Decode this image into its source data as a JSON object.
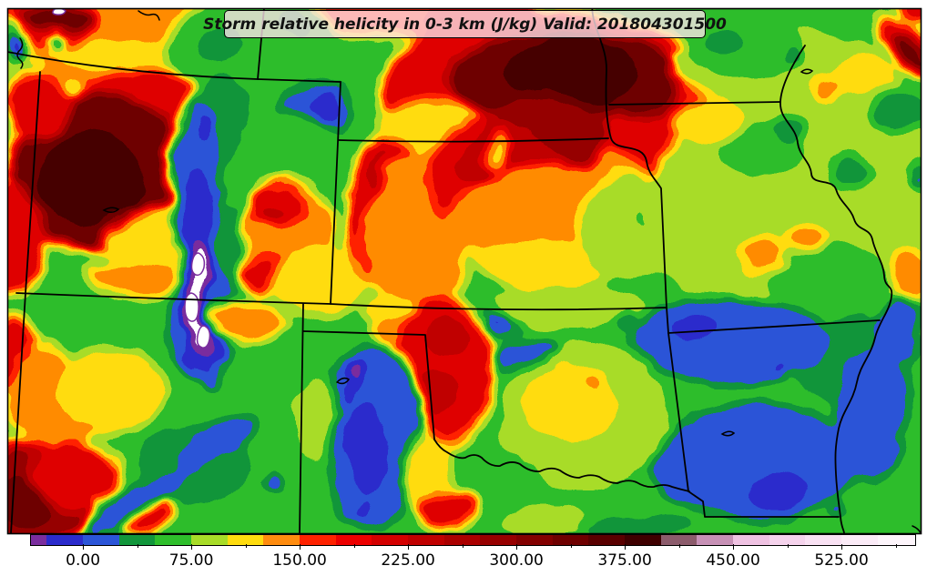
{
  "title": {
    "text": "Storm relative helicity in 0-3 km (J/kg) Valid: 201804301500"
  },
  "colorbar": {
    "domain": [
      -36,
      576
    ],
    "major_ticks": [
      {
        "value": 0,
        "label": "0.00"
      },
      {
        "value": 75,
        "label": "75.00"
      },
      {
        "value": 150,
        "label": "150.00"
      },
      {
        "value": 225,
        "label": "225.00"
      },
      {
        "value": 300,
        "label": "300.00"
      },
      {
        "value": 375,
        "label": "375.00"
      },
      {
        "value": 450,
        "label": "450.00"
      },
      {
        "value": 525,
        "label": "525.00"
      }
    ],
    "minor_ticks": [
      37.5,
      112.5,
      187.5,
      262.5,
      337.5,
      412.5,
      487.5,
      562.5
    ],
    "segments": [
      {
        "from": -36,
        "to": -25,
        "color": "#7A2D9E"
      },
      {
        "from": -25,
        "to": 0,
        "color": "#2B2BCC"
      },
      {
        "from": 0,
        "to": 25,
        "color": "#2B55D8"
      },
      {
        "from": 25,
        "to": 50,
        "color": "#11963B"
      },
      {
        "from": 50,
        "to": 75,
        "color": "#2EBE2B"
      },
      {
        "from": 75,
        "to": 100,
        "color": "#A8DC28"
      },
      {
        "from": 100,
        "to": 125,
        "color": "#FFDC0F"
      },
      {
        "from": 125,
        "to": 150,
        "color": "#FF8C0F"
      },
      {
        "from": 150,
        "to": 175,
        "color": "#FF2200"
      },
      {
        "from": 175,
        "to": 200,
        "color": "#ED0000"
      },
      {
        "from": 200,
        "to": 225,
        "color": "#D40000"
      },
      {
        "from": 225,
        "to": 250,
        "color": "#C00000"
      },
      {
        "from": 250,
        "to": 275,
        "color": "#AB0000"
      },
      {
        "from": 275,
        "to": 300,
        "color": "#970000"
      },
      {
        "from": 300,
        "to": 325,
        "color": "#830000"
      },
      {
        "from": 325,
        "to": 350,
        "color": "#6F0000"
      },
      {
        "from": 350,
        "to": 375,
        "color": "#5A0000"
      },
      {
        "from": 375,
        "to": 400,
        "color": "#3F0000"
      },
      {
        "from": 400,
        "to": 425,
        "color": "#8C5C6C"
      },
      {
        "from": 425,
        "to": 450,
        "color": "#C791B6"
      },
      {
        "from": 450,
        "to": 475,
        "color": "#EFC2E2"
      },
      {
        "from": 475,
        "to": 500,
        "color": "#F5D3EC"
      },
      {
        "from": 500,
        "to": 525,
        "color": "#F9E1F3"
      },
      {
        "from": 525,
        "to": 550,
        "color": "#FBEBF7"
      },
      {
        "from": 550,
        "to": 576,
        "color": "#FDF5FB"
      }
    ]
  },
  "chart_data": {
    "type": "heatmap",
    "title": "Storm relative helicity in 0-3 km (J/kg) Valid: 201804301500",
    "variable": "Storm relative helicity in 0-3 km",
    "units": "J/kg",
    "valid_time": "201804301500",
    "legend_position": "bottom",
    "contour_interval": 25,
    "colorbar_tick_labels": [
      "0.00",
      "75.00",
      "150.00",
      "225.00",
      "300.00",
      "375.00",
      "450.00",
      "525.00"
    ],
    "colorbar_value_range": [
      -36,
      576
    ]
  }
}
